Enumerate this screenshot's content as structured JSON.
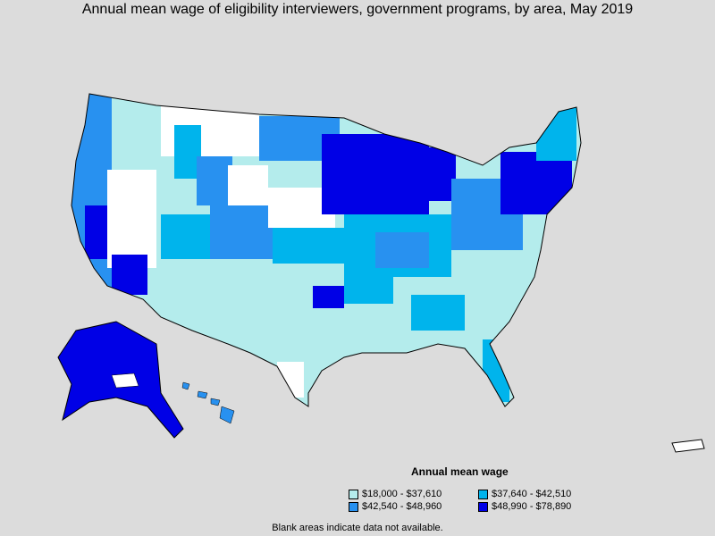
{
  "title": "Annual mean wage of eligibility interviewers, government programs, by area, May 2019",
  "legend": {
    "title": "Annual mean wage",
    "items": [
      {
        "label": "$18,000 - $37,610",
        "color": "#b4ecec"
      },
      {
        "label": "$37,640 - $42,510",
        "color": "#00b4ec"
      },
      {
        "label": "$42,540 - $48,960",
        "color": "#2891f0"
      },
      {
        "label": "$48,990 - $78,890",
        "color": "#0000e6"
      }
    ]
  },
  "note": "Blank areas indicate data not available.",
  "colors": {
    "background": "#dcdcdc",
    "no_data": "#ffffff",
    "border": "#000000"
  }
}
